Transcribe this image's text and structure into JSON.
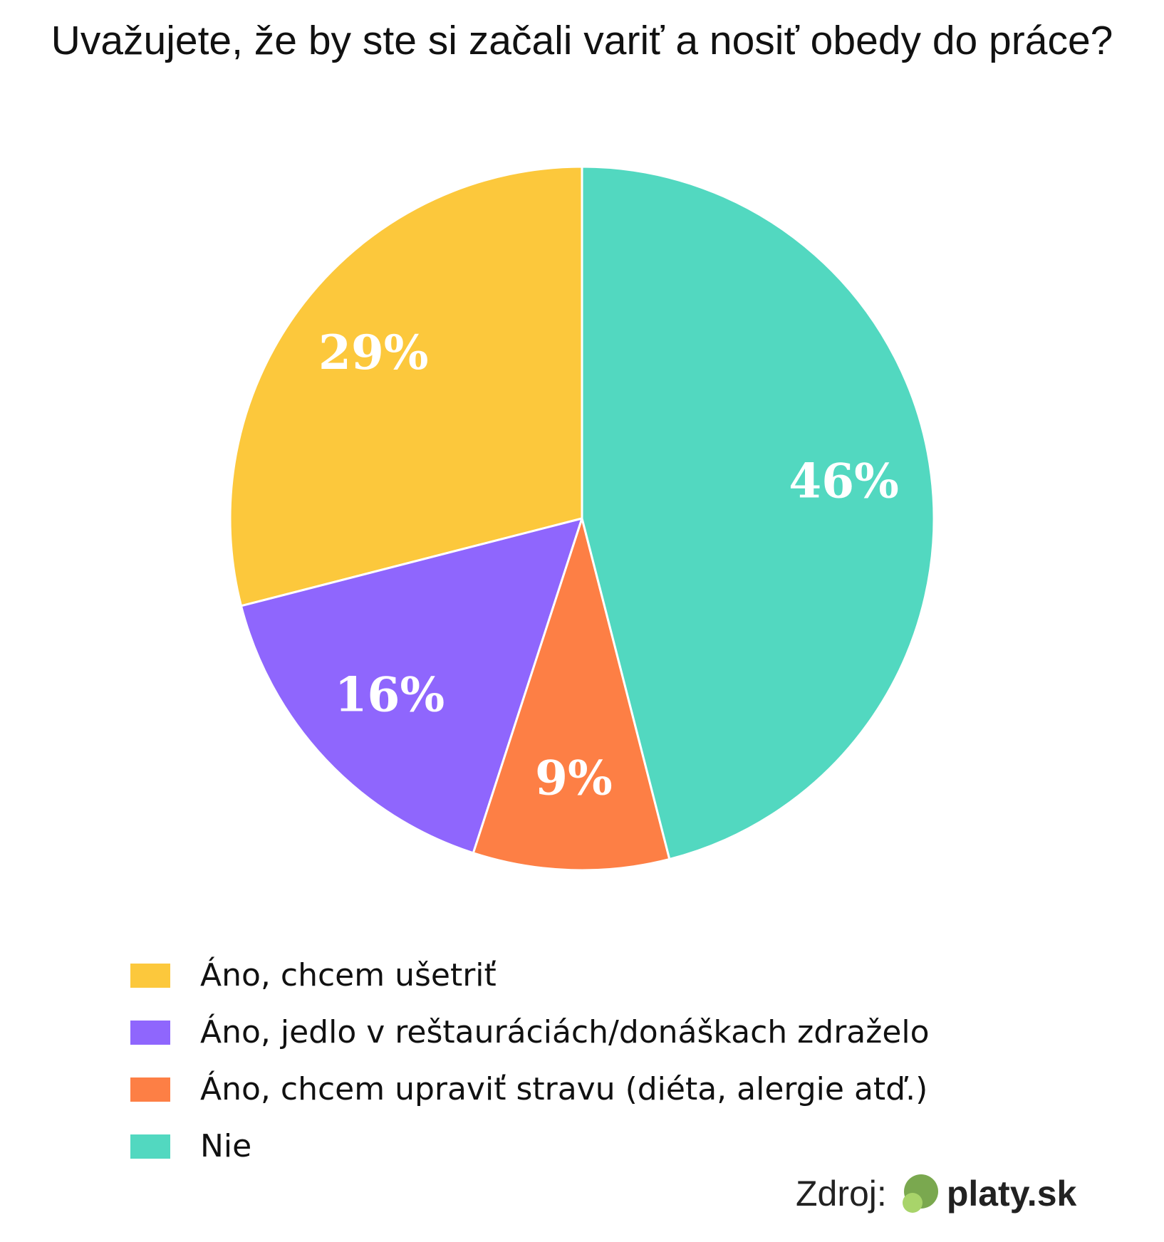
{
  "chart_data": {
    "type": "pie",
    "title": "Uvažujete, že by ste si začali variť a nosiť obedy do práce?",
    "categories": [
      "Áno, chcem ušetriť",
      "Áno, jedlo v reštauráciách/donáškach zdraželo",
      "Áno, chcem upraviť stravu (diéta, alergie atď.)",
      "Nie"
    ],
    "values": [
      29,
      16,
      9,
      46
    ],
    "value_labels": [
      "29%",
      "16%",
      "9%",
      "46%"
    ],
    "colors": [
      "#fcc83c",
      "#8f66fd",
      "#fd7f45",
      "#52d8c0"
    ],
    "source_label": "Zdroj:",
    "source_name": "platy.sk"
  }
}
